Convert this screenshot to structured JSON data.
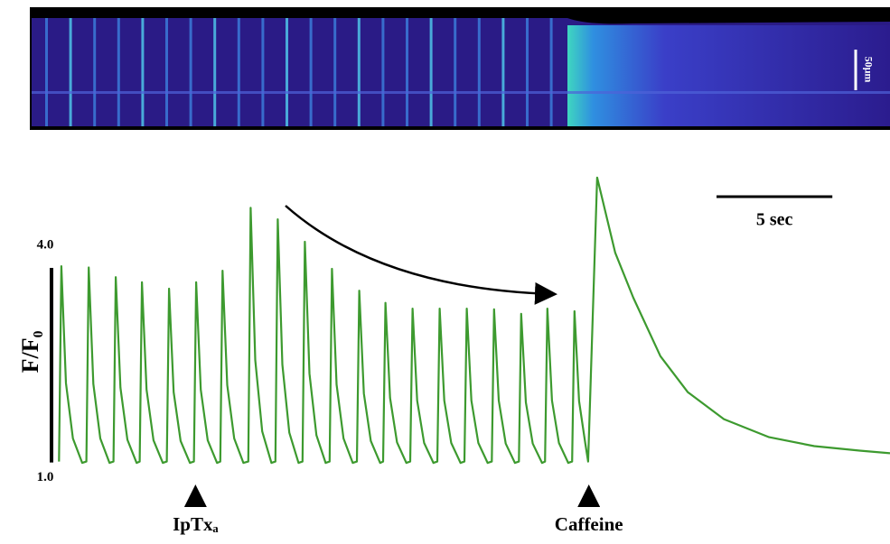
{
  "chart_data": {
    "type": "line",
    "y_label": "F/F₀",
    "xlim": [
      0,
      36
    ],
    "ylim": [
      0.7,
      5.6
    ],
    "yticks": [
      {
        "value": 1,
        "label": "1.0"
      },
      {
        "value": 4,
        "label": "4.0"
      }
    ],
    "scale_bar": {
      "length": 5,
      "label": "5 sec"
    },
    "image_scale_label": "50μm",
    "annotations": [
      {
        "x": 6.02,
        "label": "IpTxₐ"
      },
      {
        "x": 23.0,
        "label": "Caffeine"
      }
    ],
    "series": [
      {
        "color": "#3d9a2f",
        "x": [
          0.13,
          0.23,
          0.43,
          0.73,
          1.13,
          1.31,
          1.41,
          1.61,
          1.91,
          2.31,
          2.48,
          2.58,
          2.78,
          3.08,
          3.48,
          3.61,
          3.71,
          3.91,
          4.21,
          4.61,
          4.78,
          4.88,
          5.08,
          5.38,
          5.78,
          5.95,
          6.05,
          6.25,
          6.55,
          6.95,
          7.09,
          7.19,
          7.39,
          7.69,
          8.09,
          8.3,
          8.4,
          8.6,
          8.9,
          9.3,
          9.47,
          9.57,
          9.77,
          10.07,
          10.47,
          10.64,
          10.74,
          10.94,
          11.24,
          11.64,
          11.81,
          11.91,
          12.11,
          12.41,
          12.81,
          12.99,
          13.09,
          13.29,
          13.59,
          13.99,
          14.12,
          14.22,
          14.42,
          14.72,
          15.12,
          15.29,
          15.39,
          15.59,
          15.89,
          16.29,
          16.46,
          16.56,
          16.76,
          17.06,
          17.46,
          17.63,
          17.73,
          17.93,
          18.23,
          18.63,
          18.81,
          18.91,
          19.11,
          19.41,
          19.81,
          19.98,
          20.08,
          20.28,
          20.58,
          20.98,
          21.11,
          21.21,
          21.41,
          21.71,
          22.11,
          22.28,
          22.38,
          22.58,
          22.85,
          22.97,
          23.36,
          24.14,
          24.92,
          26.09,
          27.27,
          28.83,
          30.78,
          32.73,
          34.69,
          36.0
        ],
        "values": [
          1.0,
          4.04,
          2.22,
          1.36,
          0.98,
          1.0,
          4.02,
          2.21,
          1.36,
          0.98,
          1.0,
          3.87,
          2.15,
          1.34,
          0.98,
          1.0,
          3.79,
          2.12,
          1.33,
          0.98,
          1.0,
          3.69,
          2.08,
          1.32,
          0.98,
          1.0,
          3.79,
          2.12,
          1.33,
          0.98,
          1.0,
          3.97,
          2.19,
          1.36,
          0.98,
          1.0,
          4.95,
          2.58,
          1.47,
          0.98,
          1.0,
          4.77,
          2.51,
          1.45,
          0.98,
          1.0,
          4.42,
          2.37,
          1.41,
          0.98,
          1.0,
          4.0,
          2.2,
          1.36,
          0.98,
          1.0,
          3.66,
          2.06,
          1.32,
          0.98,
          1.0,
          3.47,
          1.99,
          1.3,
          0.98,
          1.0,
          3.38,
          1.95,
          1.29,
          0.98,
          1.0,
          3.38,
          1.95,
          1.29,
          0.98,
          1.0,
          3.38,
          1.95,
          1.29,
          0.98,
          1.0,
          3.37,
          1.95,
          1.28,
          0.98,
          1.0,
          3.3,
          1.92,
          1.28,
          0.98,
          1.0,
          3.38,
          1.95,
          1.29,
          0.98,
          1.0,
          3.34,
          1.94,
          1.28,
          1.0,
          5.42,
          4.25,
          3.55,
          2.64,
          2.08,
          1.66,
          1.38,
          1.24,
          1.17,
          1.13
        ]
      }
    ]
  }
}
